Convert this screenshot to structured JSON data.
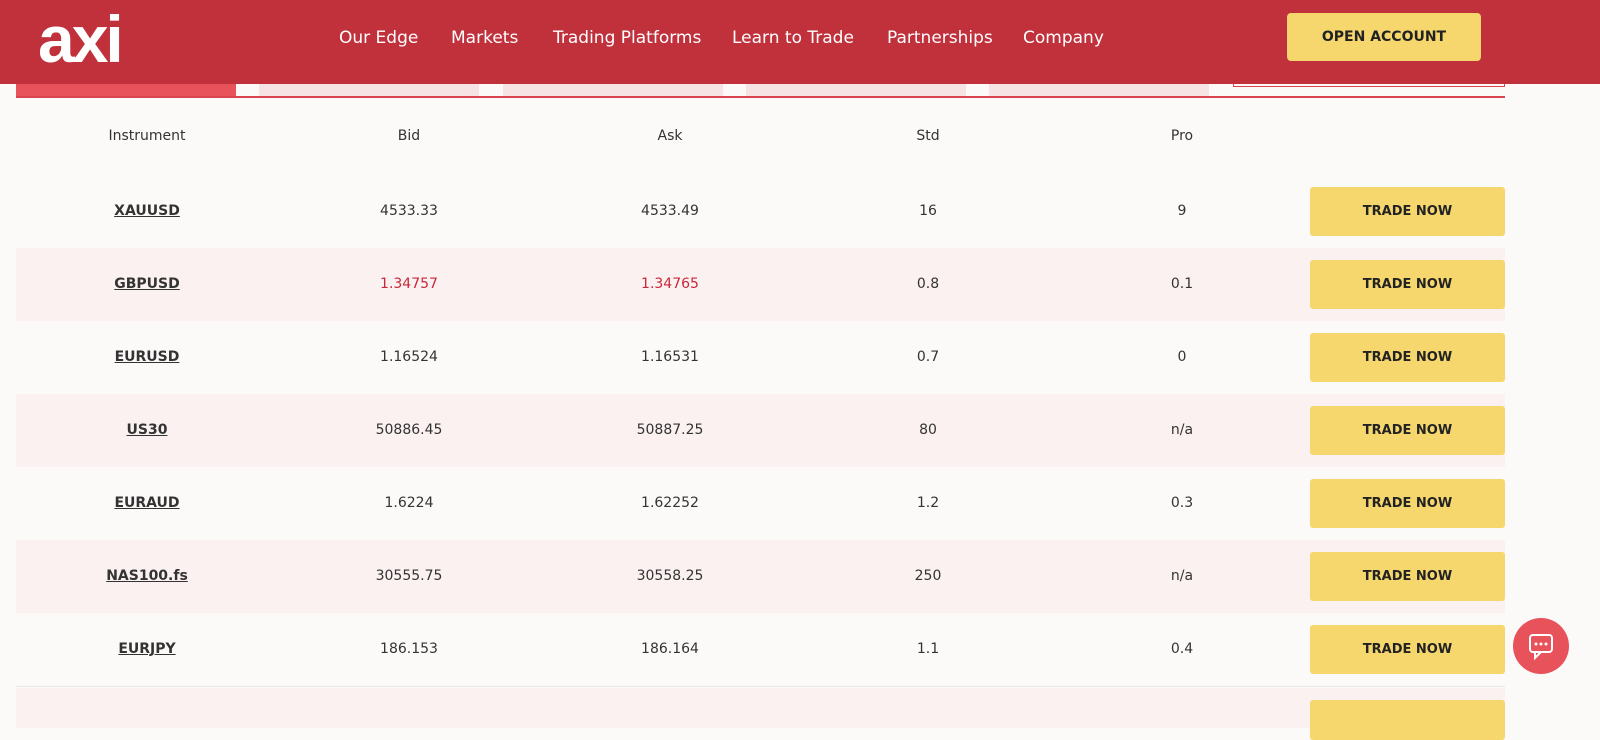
{
  "header": {
    "logo": "axi",
    "nav": [
      "Our Edge",
      "Markets",
      "Trading Platforms",
      "Learn to Trade",
      "Partnerships",
      "Company"
    ],
    "cta": "OPEN ACCOUNT"
  },
  "table": {
    "columns": [
      "Instrument",
      "Bid",
      "Ask",
      "Std",
      "Pro"
    ],
    "rows": [
      {
        "cells": [
          "XAUUSD",
          "4533.33",
          "4533.49",
          "16",
          "9"
        ],
        "action": "TRADE NOW",
        "price_color": "#333333"
      },
      {
        "cells": [
          "GBPUSD",
          "1.34757",
          "1.34765",
          "0.8",
          "0.1"
        ],
        "action": "TRADE NOW",
        "price_color": "#c8283a"
      },
      {
        "cells": [
          "EURUSD",
          "1.16524",
          "1.16531",
          "0.7",
          "0"
        ],
        "action": "TRADE NOW",
        "price_color": "#333333"
      },
      {
        "cells": [
          "US30",
          "50886.45",
          "50887.25",
          "80",
          "n/a"
        ],
        "action": "TRADE NOW",
        "price_color": "#333333"
      },
      {
        "cells": [
          "EURAUD",
          "1.6224",
          "1.62252",
          "1.2",
          "0.3"
        ],
        "action": "TRADE NOW",
        "price_color": "#333333"
      },
      {
        "cells": [
          "NAS100.fs",
          "30555.75",
          "30558.25",
          "250",
          "n/a"
        ],
        "action": "TRADE NOW",
        "price_color": "#333333"
      },
      {
        "cells": [
          "EURJPY",
          "186.153",
          "186.164",
          "1.1",
          "0.4"
        ],
        "action": "TRADE NOW",
        "price_color": "#333333"
      }
    ]
  }
}
